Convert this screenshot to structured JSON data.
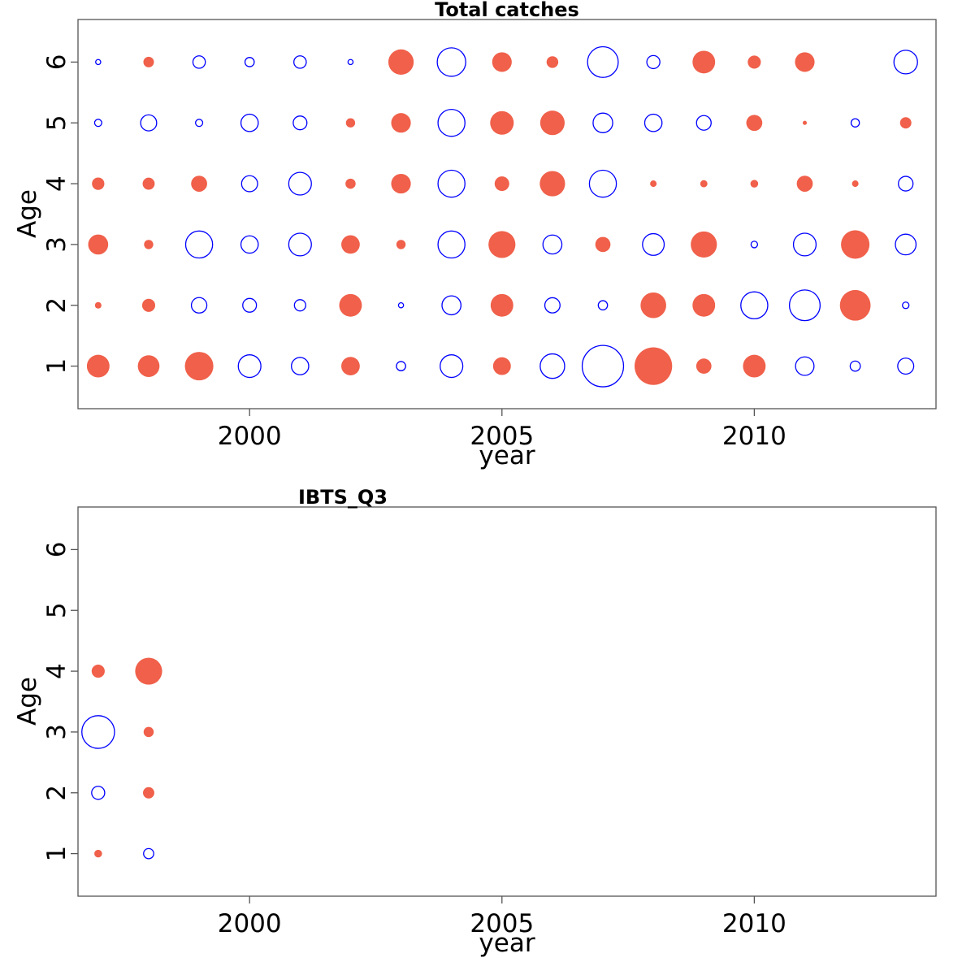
{
  "colors": {
    "positive": "#f0604a",
    "negative": "#0000ff",
    "axis": "#555555"
  },
  "chart_data": [
    {
      "type": "scatter",
      "subtype": "bubble",
      "title": "Total catches",
      "xlabel": "year",
      "ylabel": "Age",
      "xlim": [
        1996.6,
        2013.6
      ],
      "ylim": [
        0.3,
        6.7
      ],
      "xticks": [
        2000,
        2005,
        2010
      ],
      "yticks": [
        1,
        2,
        3,
        4,
        5,
        6
      ],
      "grid": false,
      "legend": "none",
      "size_scale": 1.0,
      "encoding": "filled = positive residual, open = negative residual, area ~ |value|",
      "points": [
        {
          "x": 1997,
          "y": 1,
          "v": 0.6
        },
        {
          "x": 1998,
          "y": 1,
          "v": 0.55
        },
        {
          "x": 1999,
          "y": 1,
          "v": 0.95
        },
        {
          "x": 2000,
          "y": 1,
          "v": -0.6
        },
        {
          "x": 2001,
          "y": 1,
          "v": -0.35
        },
        {
          "x": 2002,
          "y": 1,
          "v": 0.4
        },
        {
          "x": 2003,
          "y": 1,
          "v": -0.1
        },
        {
          "x": 2004,
          "y": 1,
          "v": -0.6
        },
        {
          "x": 2005,
          "y": 1,
          "v": 0.37
        },
        {
          "x": 2006,
          "y": 1,
          "v": -0.7
        },
        {
          "x": 2007,
          "y": 1,
          "v": -2.0
        },
        {
          "x": 2008,
          "y": 1,
          "v": 1.65
        },
        {
          "x": 2009,
          "y": 1,
          "v": 0.27
        },
        {
          "x": 2010,
          "y": 1,
          "v": 0.6
        },
        {
          "x": 2011,
          "y": 1,
          "v": -0.4
        },
        {
          "x": 2012,
          "y": 1,
          "v": -0.12
        },
        {
          "x": 2013,
          "y": 1,
          "v": -0.3
        },
        {
          "x": 1997,
          "y": 2,
          "v": 0.05
        },
        {
          "x": 1998,
          "y": 2,
          "v": 0.2
        },
        {
          "x": 1999,
          "y": 2,
          "v": -0.28
        },
        {
          "x": 2000,
          "y": 2,
          "v": -0.22
        },
        {
          "x": 2001,
          "y": 2,
          "v": -0.15
        },
        {
          "x": 2002,
          "y": 2,
          "v": 0.6
        },
        {
          "x": 2003,
          "y": 2,
          "v": -0.03
        },
        {
          "x": 2004,
          "y": 2,
          "v": -0.42
        },
        {
          "x": 2005,
          "y": 2,
          "v": 0.6
        },
        {
          "x": 2006,
          "y": 2,
          "v": -0.27
        },
        {
          "x": 2007,
          "y": 2,
          "v": -0.1
        },
        {
          "x": 2008,
          "y": 2,
          "v": 0.77
        },
        {
          "x": 2009,
          "y": 2,
          "v": 0.6
        },
        {
          "x": 2010,
          "y": 2,
          "v": -0.85
        },
        {
          "x": 2011,
          "y": 2,
          "v": -1.1
        },
        {
          "x": 2012,
          "y": 2,
          "v": 1.1
        },
        {
          "x": 2013,
          "y": 2,
          "v": -0.05
        },
        {
          "x": 1997,
          "y": 3,
          "v": 0.47
        },
        {
          "x": 1998,
          "y": 3,
          "v": 0.1
        },
        {
          "x": 1999,
          "y": 3,
          "v": -0.85
        },
        {
          "x": 2000,
          "y": 3,
          "v": -0.35
        },
        {
          "x": 2001,
          "y": 3,
          "v": -0.6
        },
        {
          "x": 2002,
          "y": 3,
          "v": 0.4
        },
        {
          "x": 2003,
          "y": 3,
          "v": 0.1
        },
        {
          "x": 2004,
          "y": 3,
          "v": -0.85
        },
        {
          "x": 2005,
          "y": 3,
          "v": 0.85
        },
        {
          "x": 2006,
          "y": 3,
          "v": -0.42
        },
        {
          "x": 2007,
          "y": 3,
          "v": 0.27
        },
        {
          "x": 2008,
          "y": 3,
          "v": -0.55
        },
        {
          "x": 2009,
          "y": 3,
          "v": 0.8
        },
        {
          "x": 2010,
          "y": 3,
          "v": -0.05
        },
        {
          "x": 2011,
          "y": 3,
          "v": -0.6
        },
        {
          "x": 2012,
          "y": 3,
          "v": 0.95
        },
        {
          "x": 2013,
          "y": 3,
          "v": -0.5
        },
        {
          "x": 1997,
          "y": 4,
          "v": 0.18
        },
        {
          "x": 1998,
          "y": 4,
          "v": 0.17
        },
        {
          "x": 1999,
          "y": 4,
          "v": 0.3
        },
        {
          "x": 2000,
          "y": 4,
          "v": -0.3
        },
        {
          "x": 2001,
          "y": 4,
          "v": -0.6
        },
        {
          "x": 2002,
          "y": 4,
          "v": 0.12
        },
        {
          "x": 2003,
          "y": 4,
          "v": 0.45
        },
        {
          "x": 2004,
          "y": 4,
          "v": -0.85
        },
        {
          "x": 2005,
          "y": 4,
          "v": 0.25
        },
        {
          "x": 2006,
          "y": 4,
          "v": 0.75
        },
        {
          "x": 2007,
          "y": 4,
          "v": -0.85
        },
        {
          "x": 2008,
          "y": 4,
          "v": 0.05
        },
        {
          "x": 2009,
          "y": 4,
          "v": 0.06
        },
        {
          "x": 2010,
          "y": 4,
          "v": 0.07
        },
        {
          "x": 2011,
          "y": 4,
          "v": 0.3
        },
        {
          "x": 2012,
          "y": 4,
          "v": 0.05
        },
        {
          "x": 2013,
          "y": 4,
          "v": -0.25
        },
        {
          "x": 1997,
          "y": 5,
          "v": -0.06
        },
        {
          "x": 1998,
          "y": 5,
          "v": -0.3
        },
        {
          "x": 1999,
          "y": 5,
          "v": -0.06
        },
        {
          "x": 2000,
          "y": 5,
          "v": -0.35
        },
        {
          "x": 2001,
          "y": 5,
          "v": -0.22
        },
        {
          "x": 2002,
          "y": 5,
          "v": 0.1
        },
        {
          "x": 2003,
          "y": 5,
          "v": 0.45
        },
        {
          "x": 2004,
          "y": 5,
          "v": -0.85
        },
        {
          "x": 2005,
          "y": 5,
          "v": 0.65
        },
        {
          "x": 2006,
          "y": 5,
          "v": 0.7
        },
        {
          "x": 2007,
          "y": 5,
          "v": -0.45
        },
        {
          "x": 2008,
          "y": 5,
          "v": -0.35
        },
        {
          "x": 2009,
          "y": 5,
          "v": -0.25
        },
        {
          "x": 2010,
          "y": 5,
          "v": 0.3
        },
        {
          "x": 2011,
          "y": 5,
          "v": 0.02
        },
        {
          "x": 2012,
          "y": 5,
          "v": -0.08
        },
        {
          "x": 2013,
          "y": 5,
          "v": 0.15
        },
        {
          "x": 1997,
          "y": 6,
          "v": -0.03
        },
        {
          "x": 1998,
          "y": 6,
          "v": 0.13
        },
        {
          "x": 1999,
          "y": 6,
          "v": -0.18
        },
        {
          "x": 2000,
          "y": 6,
          "v": -0.1
        },
        {
          "x": 2001,
          "y": 6,
          "v": -0.18
        },
        {
          "x": 2002,
          "y": 6,
          "v": -0.03
        },
        {
          "x": 2003,
          "y": 6,
          "v": 0.75
        },
        {
          "x": 2004,
          "y": 6,
          "v": -0.95
        },
        {
          "x": 2005,
          "y": 6,
          "v": 0.45
        },
        {
          "x": 2006,
          "y": 6,
          "v": 0.16
        },
        {
          "x": 2007,
          "y": 6,
          "v": -1.1
        },
        {
          "x": 2008,
          "y": 6,
          "v": -0.2
        },
        {
          "x": 2009,
          "y": 6,
          "v": 0.6
        },
        {
          "x": 2010,
          "y": 6,
          "v": 0.2
        },
        {
          "x": 2011,
          "y": 6,
          "v": 0.45
        },
        {
          "x": 2013,
          "y": 6,
          "v": -0.65
        }
      ]
    },
    {
      "type": "scatter",
      "subtype": "bubble",
      "title": "IBTS_Q3",
      "xlabel": "year",
      "ylabel": "Age",
      "xlim": [
        1996.6,
        2013.6
      ],
      "ylim": [
        0.3,
        6.7
      ],
      "xticks": [
        2000,
        2005,
        2010
      ],
      "yticks": [
        1,
        2,
        3,
        4,
        5,
        6
      ],
      "grid": false,
      "legend": "none",
      "size_scale": 1.0,
      "encoding": "filled = positive residual, open = negative residual, area ~ |value|",
      "points": [
        {
          "x": 1997,
          "y": 1,
          "v": 0.07
        },
        {
          "x": 1997,
          "y": 2,
          "v": -0.2
        },
        {
          "x": 1997,
          "y": 3,
          "v": -1.25
        },
        {
          "x": 1997,
          "y": 4,
          "v": 0.2
        },
        {
          "x": 1998,
          "y": 1,
          "v": -0.12
        },
        {
          "x": 1998,
          "y": 2,
          "v": 0.15
        },
        {
          "x": 1998,
          "y": 3,
          "v": 0.12
        },
        {
          "x": 1998,
          "y": 4,
          "v": 0.85
        }
      ]
    }
  ]
}
